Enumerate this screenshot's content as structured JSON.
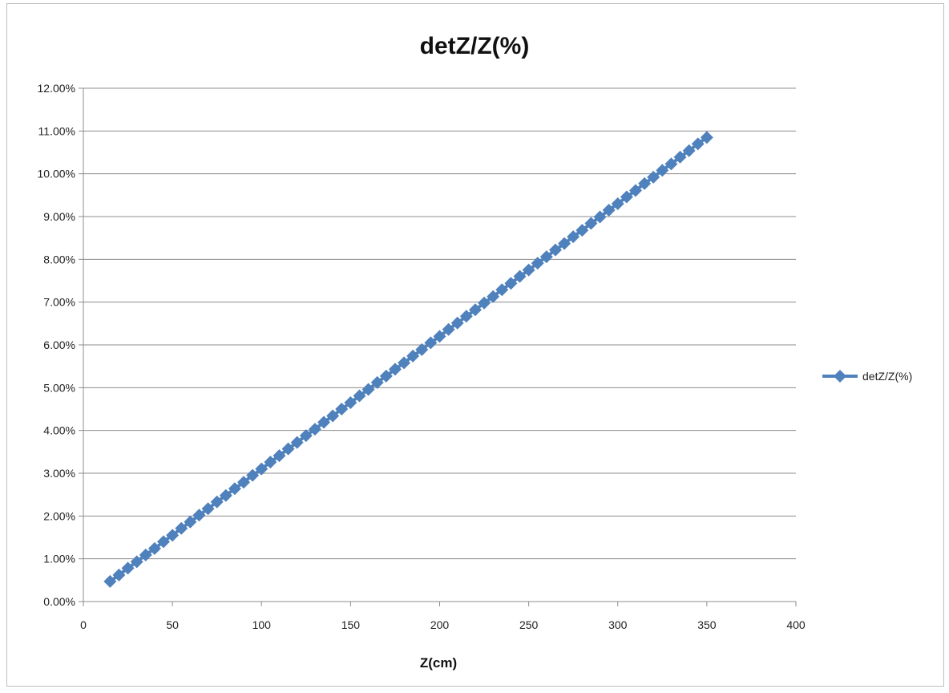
{
  "chart_data": {
    "type": "line",
    "title": "detZ/Z(%)",
    "xlabel": "Z(cm)",
    "ylabel": "",
    "xlim": [
      0,
      400
    ],
    "ylim": [
      0,
      0.12
    ],
    "x_ticks": [
      "0",
      "50",
      "100",
      "150",
      "200",
      "250",
      "300",
      "350",
      "400"
    ],
    "x_tick_values": [
      0,
      50,
      100,
      150,
      200,
      250,
      300,
      350,
      400
    ],
    "y_ticks": [
      "0.00%",
      "1.00%",
      "2.00%",
      "3.00%",
      "4.00%",
      "5.00%",
      "6.00%",
      "7.00%",
      "8.00%",
      "9.00%",
      "10.00%",
      "11.00%",
      "12.00%"
    ],
    "y_tick_values": [
      0,
      0.01,
      0.02,
      0.03,
      0.04,
      0.05,
      0.06,
      0.07,
      0.08,
      0.09,
      0.1,
      0.11,
      0.12
    ],
    "grid": "horizontal",
    "legend_position": "right",
    "series": [
      {
        "name": "detZ/Z(%)",
        "color": "#4f81bd",
        "marker": "diamond",
        "x": [
          15,
          20,
          25,
          30,
          35,
          40,
          45,
          50,
          55,
          60,
          65,
          70,
          75,
          80,
          85,
          90,
          95,
          100,
          105,
          110,
          115,
          120,
          125,
          130,
          135,
          140,
          145,
          150,
          155,
          160,
          165,
          170,
          175,
          180,
          185,
          190,
          195,
          200,
          205,
          210,
          215,
          220,
          225,
          230,
          235,
          240,
          245,
          250,
          255,
          260,
          265,
          270,
          275,
          280,
          285,
          290,
          295,
          300,
          305,
          310,
          315,
          320,
          325,
          330,
          335,
          340,
          345,
          350
        ],
        "y": [
          0.0047,
          0.0062,
          0.0078,
          0.0093,
          0.0109,
          0.0124,
          0.014,
          0.0155,
          0.0171,
          0.0186,
          0.0202,
          0.0217,
          0.0233,
          0.0248,
          0.0264,
          0.0279,
          0.0295,
          0.031,
          0.0326,
          0.0341,
          0.0357,
          0.0372,
          0.0388,
          0.0403,
          0.0419,
          0.0434,
          0.045,
          0.0465,
          0.0481,
          0.0496,
          0.0512,
          0.0527,
          0.0543,
          0.0558,
          0.0574,
          0.0589,
          0.0605,
          0.062,
          0.0636,
          0.0651,
          0.0667,
          0.0682,
          0.0698,
          0.0713,
          0.0729,
          0.0744,
          0.076,
          0.0775,
          0.0791,
          0.0806,
          0.0822,
          0.0837,
          0.0853,
          0.0868,
          0.0884,
          0.0899,
          0.0915,
          0.093,
          0.0946,
          0.0961,
          0.0977,
          0.0992,
          0.1008,
          0.1023,
          0.1039,
          0.1054,
          0.107,
          0.1085
        ]
      }
    ]
  }
}
